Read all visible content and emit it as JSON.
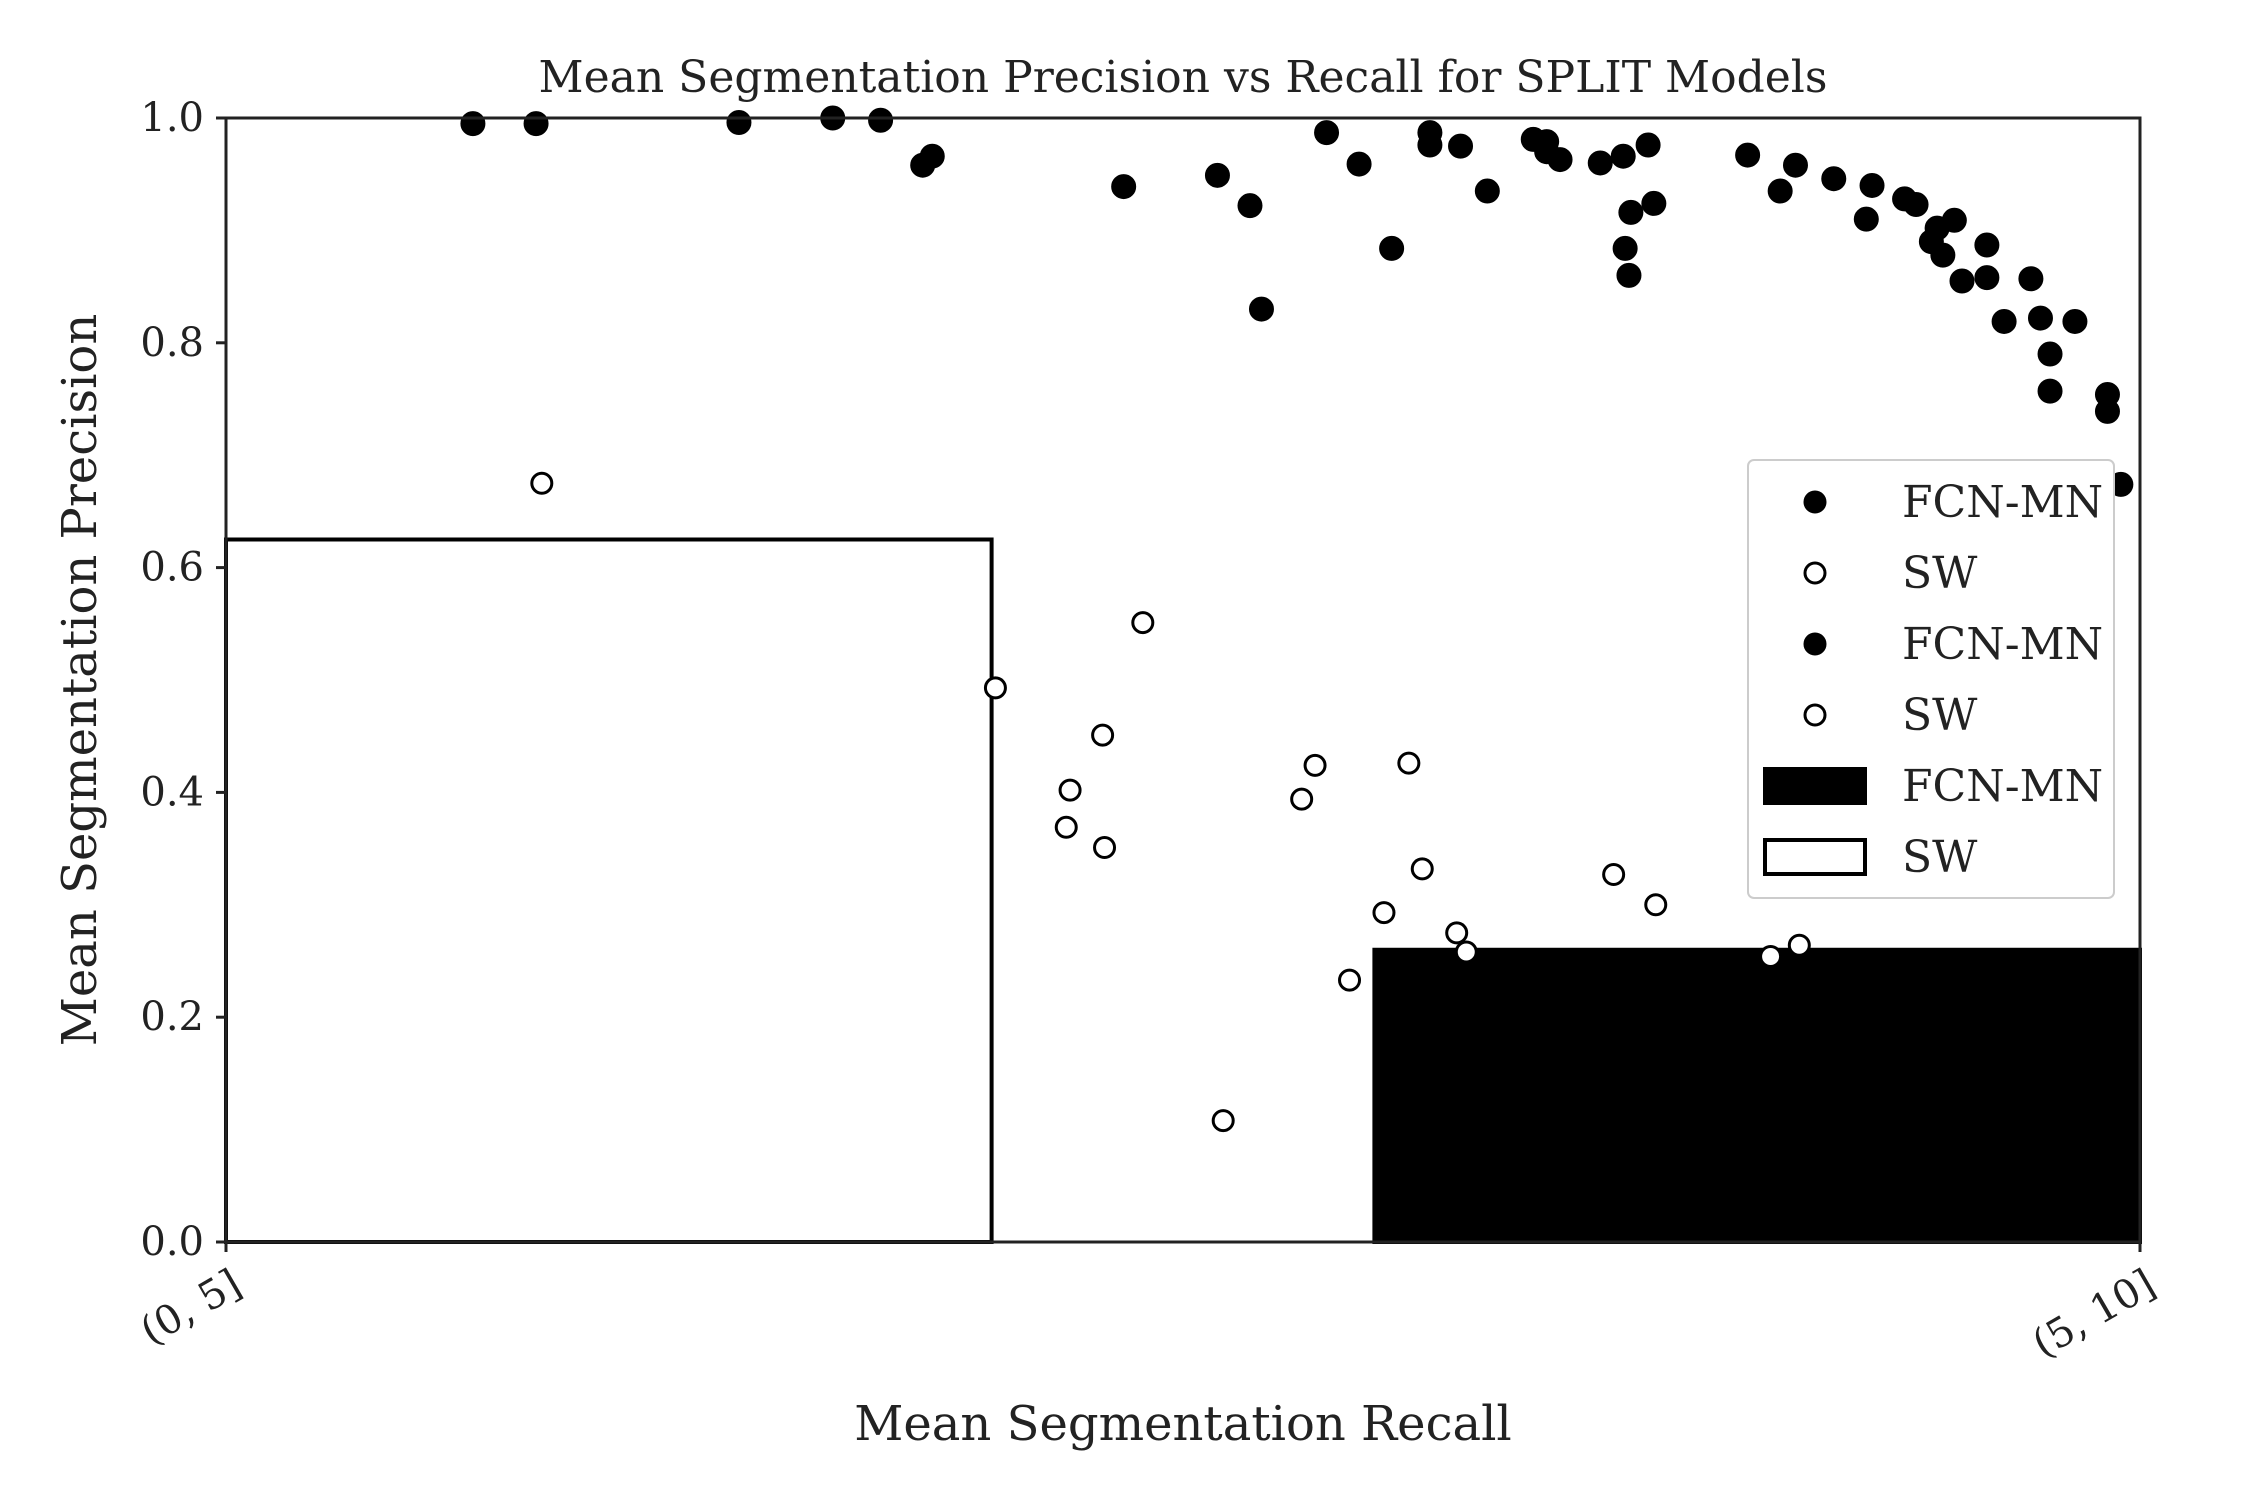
{
  "chart_data": {
    "type": "scatter",
    "title": "Mean Segmentation Precision vs Recall for SPLIT Models",
    "xlabel": "Mean Segmentation Recall",
    "ylabel": "Mean Segmentation Precision",
    "xlim": [
      0,
      1
    ],
    "ylim": [
      0,
      1
    ],
    "x_tick_labels": [
      "(0, 5]",
      "(5, 10]"
    ],
    "y_tick_labels": [
      "0.0",
      "0.2",
      "0.4",
      "0.6",
      "0.8",
      "1.0"
    ],
    "y_ticks": [
      0,
      0.2,
      0.4,
      0.6,
      0.8,
      1.0
    ],
    "grid": false,
    "legend_position": "right",
    "colors": {
      "fcn_mn": "#000000",
      "sw_fill": "#ffffff",
      "edge": "#000000",
      "axis": "#222222"
    },
    "bars": [
      {
        "name": "FCN-MN",
        "x_start": 0.6,
        "x_end": 1.0,
        "value": 0.26,
        "fill": "filled"
      },
      {
        "name": "SW",
        "x_start": 0.0,
        "x_end": 0.4,
        "value": 0.625,
        "fill": "open"
      }
    ],
    "series": [
      {
        "name": "FCN-MN",
        "marker": "filled",
        "points": [
          [
            0.129,
            0.995
          ],
          [
            0.162,
            0.995
          ],
          [
            0.268,
            0.996
          ],
          [
            0.317,
            1.0
          ],
          [
            0.342,
            0.998
          ],
          [
            0.364,
            0.958
          ],
          [
            0.369,
            0.966
          ],
          [
            0.469,
            0.939
          ],
          [
            0.518,
            0.949
          ],
          [
            0.535,
            0.922
          ],
          [
            0.541,
            0.83
          ],
          [
            0.575,
            0.987
          ],
          [
            0.592,
            0.959
          ],
          [
            0.609,
            0.884
          ],
          [
            0.629,
            0.987
          ],
          [
            0.629,
            0.976
          ],
          [
            0.645,
            0.975
          ],
          [
            0.659,
            0.935
          ],
          [
            0.683,
            0.981
          ],
          [
            0.69,
            0.979
          ],
          [
            0.69,
            0.97
          ],
          [
            0.697,
            0.963
          ],
          [
            0.718,
            0.96
          ],
          [
            0.73,
            0.966
          ],
          [
            0.731,
            0.884
          ],
          [
            0.733,
            0.86
          ],
          [
            0.734,
            0.916
          ],
          [
            0.743,
            0.976
          ],
          [
            0.746,
            0.924
          ],
          [
            0.795,
            0.967
          ],
          [
            0.812,
            0.935
          ],
          [
            0.82,
            0.958
          ],
          [
            0.84,
            0.946
          ],
          [
            0.857,
            0.91
          ],
          [
            0.86,
            0.94
          ],
          [
            0.877,
            0.928
          ],
          [
            0.883,
            0.923
          ],
          [
            0.891,
            0.89
          ],
          [
            0.894,
            0.902
          ],
          [
            0.897,
            0.878
          ],
          [
            0.903,
            0.909
          ],
          [
            0.907,
            0.855
          ],
          [
            0.92,
            0.858
          ],
          [
            0.92,
            0.887
          ],
          [
            0.929,
            0.819
          ],
          [
            0.943,
            0.857
          ],
          [
            0.948,
            0.822
          ],
          [
            0.953,
            0.79
          ],
          [
            0.953,
            0.757
          ],
          [
            0.966,
            0.819
          ],
          [
            0.983,
            0.754
          ],
          [
            0.983,
            0.739
          ],
          [
            0.99,
            0.674
          ]
        ]
      },
      {
        "name": "SW",
        "marker": "open",
        "points": [
          [
            0.165,
            0.675
          ],
          [
            0.402,
            0.493
          ],
          [
            0.439,
            0.369
          ],
          [
            0.441,
            0.402
          ],
          [
            0.458,
            0.451
          ],
          [
            0.459,
            0.351
          ],
          [
            0.479,
            0.551
          ],
          [
            0.521,
            0.108
          ],
          [
            0.562,
            0.394
          ],
          [
            0.569,
            0.424
          ],
          [
            0.587,
            0.233
          ],
          [
            0.605,
            0.293
          ],
          [
            0.618,
            0.426
          ],
          [
            0.625,
            0.332
          ],
          [
            0.643,
            0.275
          ],
          [
            0.648,
            0.258
          ],
          [
            0.725,
            0.327
          ],
          [
            0.747,
            0.3
          ],
          [
            0.807,
            0.254
          ],
          [
            0.822,
            0.264
          ]
        ]
      }
    ],
    "legend": [
      {
        "label": "FCN-MN",
        "kind": "dot-filled"
      },
      {
        "label": "SW",
        "kind": "dot-open"
      },
      {
        "label": "FCN-MN",
        "kind": "dot-filled"
      },
      {
        "label": "SW",
        "kind": "dot-open"
      },
      {
        "label": "FCN-MN",
        "kind": "patch-filled"
      },
      {
        "label": "SW",
        "kind": "patch-open"
      }
    ]
  }
}
